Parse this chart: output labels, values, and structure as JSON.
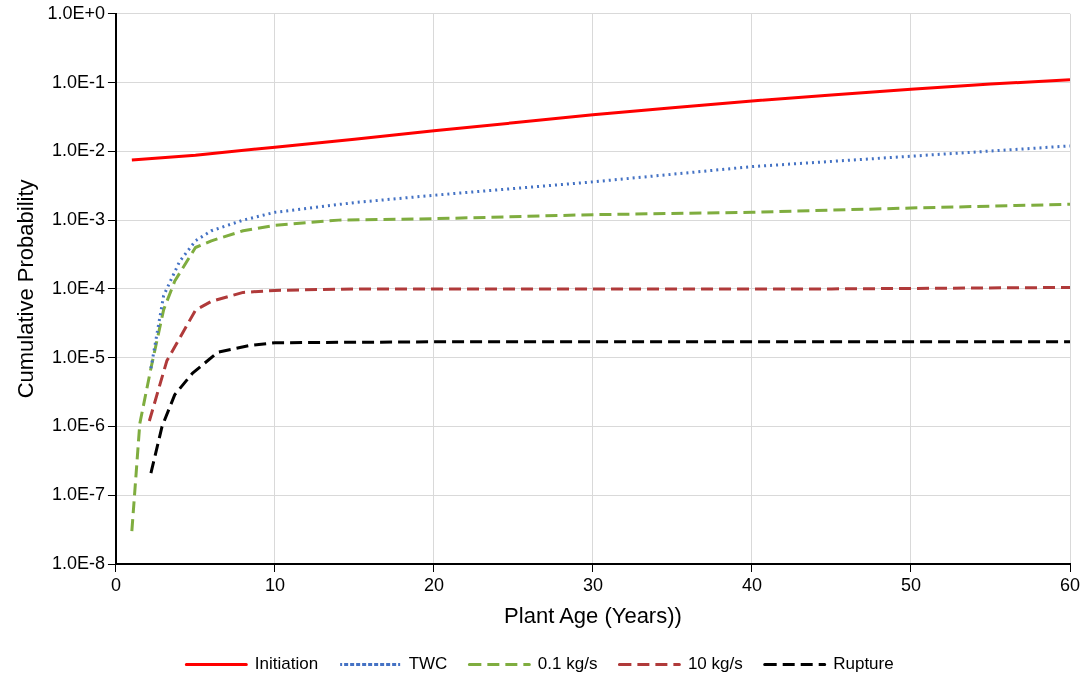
{
  "chart_data": {
    "type": "line",
    "xlabel": "Plant Age (Years))",
    "ylabel": "Cumulative Probability",
    "log": "y",
    "grid": true,
    "legend": "bottom",
    "marker": "none",
    "xlim": [
      0,
      60
    ],
    "xticks": [
      0,
      10,
      20,
      30,
      40,
      50,
      60
    ],
    "ylim": [
      1e-08,
      1
    ],
    "yticks": [
      {
        "value": 1e-08,
        "label": "1.0E-8"
      },
      {
        "value": 1e-07,
        "label": "1.0E-7"
      },
      {
        "value": 1e-06,
        "label": "1.0E-6"
      },
      {
        "value": 1e-05,
        "label": "1.0E-5"
      },
      {
        "value": 0.0001,
        "label": "1.0E-4"
      },
      {
        "value": 0.001,
        "label": "1.0E-3"
      },
      {
        "value": 0.01,
        "label": "1.0E-2"
      },
      {
        "value": 0.1,
        "label": "1.0E-1"
      },
      {
        "value": 1,
        "label": "1.0E+0"
      }
    ],
    "series": [
      {
        "name": "Initiation",
        "color": "#ff0000",
        "line_style": "solid",
        "x": [
          1,
          5,
          10,
          15,
          20,
          25,
          30,
          35,
          40,
          45,
          50,
          55,
          60
        ],
        "values": [
          0.0075,
          0.0088,
          0.0115,
          0.015,
          0.02,
          0.026,
          0.034,
          0.043,
          0.054,
          0.066,
          0.08,
          0.095,
          0.11
        ]
      },
      {
        "name": "TWC",
        "color": "#4472c4",
        "line_style": "dotted",
        "x": [
          2.2,
          3,
          4,
          5,
          6,
          8,
          10,
          15,
          20,
          30,
          40,
          50,
          60
        ],
        "values": [
          7e-06,
          8e-05,
          0.00025,
          0.0005,
          0.0007,
          0.001,
          0.0013,
          0.0018,
          0.0023,
          0.0036,
          0.006,
          0.0085,
          0.012
        ]
      },
      {
        "name": "0.1 kg/s",
        "color": "#7fad3f",
        "line_style": "dashed",
        "x": [
          1,
          1.5,
          2.2,
          3,
          3.7,
          5,
          6,
          8,
          10,
          14,
          20,
          30,
          40,
          50,
          60
        ],
        "values": [
          3e-08,
          1.1e-06,
          7e-06,
          5e-05,
          0.00013,
          0.0004,
          0.0005,
          0.0007,
          0.00084,
          0.001,
          0.00105,
          0.0012,
          0.0013,
          0.0015,
          0.0017
        ]
      },
      {
        "name": "10 kg/s",
        "color": "#b03a3a",
        "line_style": "dashed",
        "x": [
          2.1,
          3.2,
          4.2,
          5,
          6,
          8,
          10,
          15,
          30,
          45,
          60
        ],
        "values": [
          1.2e-06,
          9e-06,
          2.3e-05,
          4.9e-05,
          6.6e-05,
          8.9e-05,
          9.5e-05,
          0.0001,
          0.0001,
          0.0001,
          0.000105
        ]
      },
      {
        "name": "Rupture",
        "color": "#000000",
        "line_style": "dashed",
        "x": [
          2.2,
          2.9,
          3.7,
          4.8,
          6.4,
          8.4,
          10,
          20,
          40,
          60
        ],
        "values": [
          2.1e-07,
          1e-06,
          2.9e-06,
          5.9e-06,
          1.2e-05,
          1.5e-05,
          1.65e-05,
          1.7e-05,
          1.7e-05,
          1.7e-05
        ]
      }
    ]
  }
}
